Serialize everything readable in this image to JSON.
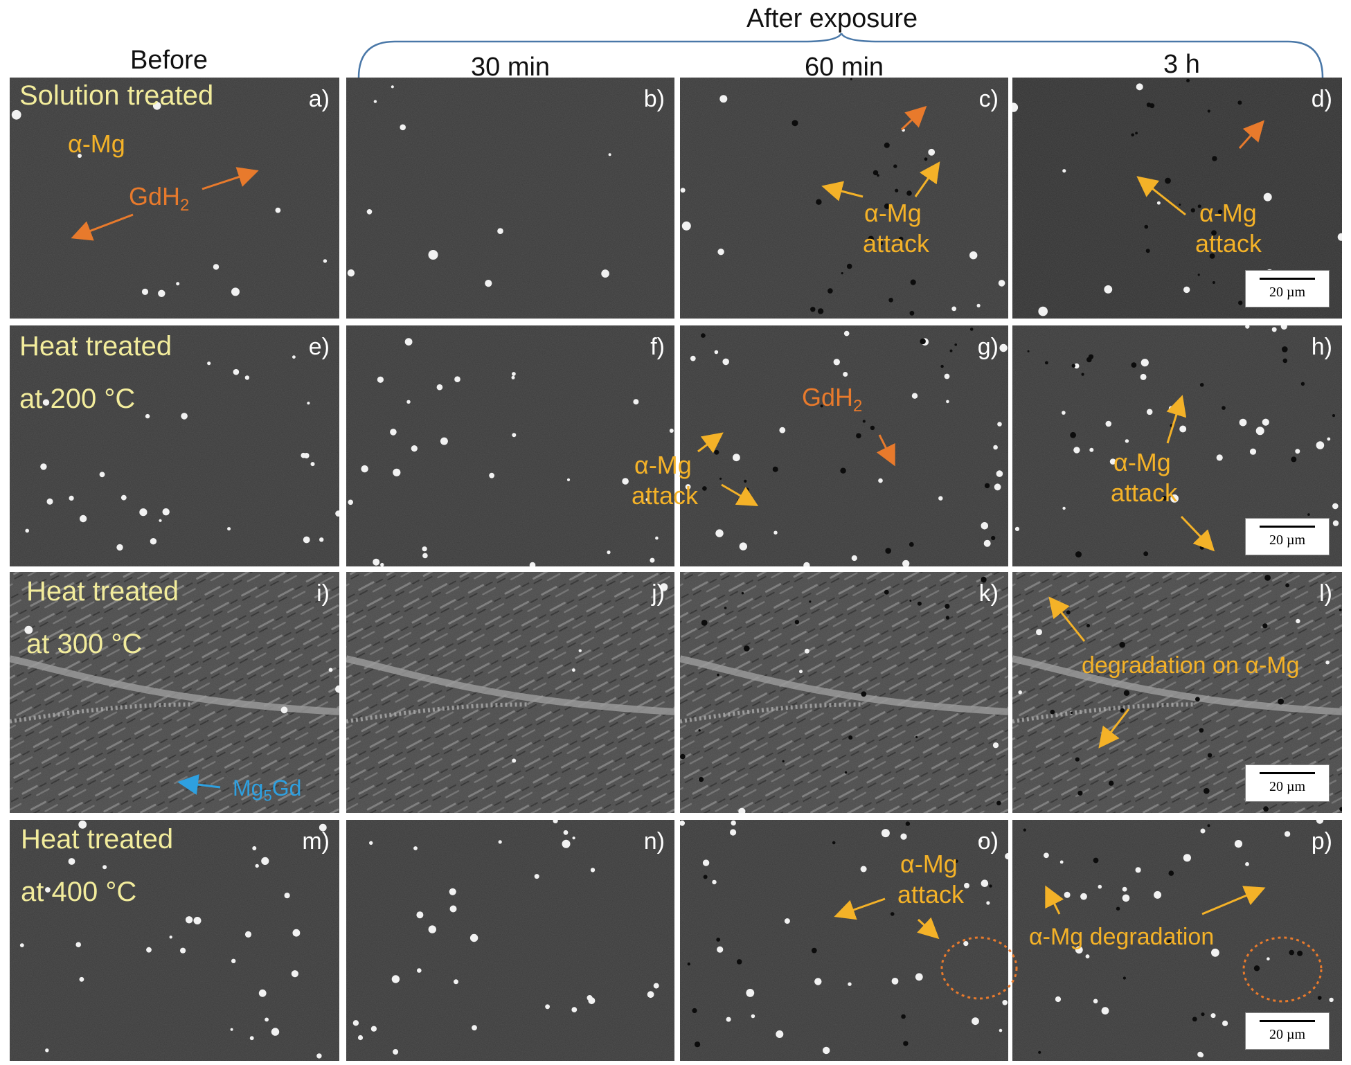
{
  "header": {
    "after_exposure": "After exposure",
    "before": "Before",
    "col_30": "30 min",
    "col_60": "60 min",
    "col_3h": "3 h"
  },
  "rows": {
    "r1": "Solution treated",
    "r2_a": "Heat treated",
    "r2_b": "at 200 °C",
    "r3_a": "Heat treated",
    "r3_b": "at 300 °C",
    "r4_a": "Heat treated",
    "r4_b": "at 400 °C"
  },
  "panel_labels": {
    "a": "a)",
    "b": "b)",
    "c": "c)",
    "d": "d)",
    "e": "e)",
    "f": "f)",
    "g": "g)",
    "h": "h)",
    "i": "i)",
    "j": "j)",
    "k": "k)",
    "l": "l)",
    "m": "m)",
    "n": "n)",
    "o": "o)",
    "p": "p)"
  },
  "annotations": {
    "alpha_mg": "α-Mg",
    "gdh": "GdH",
    "sub2": "2",
    "attack": "attack",
    "alpha_mg_attack": "α-Mg attack",
    "degradation_on": "degradation on α-Mg",
    "alpha_mg_degradation": "α-Mg degradation",
    "mg": "Mg",
    "sub5": "5",
    "gd": "Gd"
  },
  "scale_bar": "20 µm",
  "colors": {
    "row_label": "#f2ec9c",
    "annotation_yellow": "#f4b228",
    "annotation_orange": "#e87a2c",
    "annotation_blue": "#2ea0e0",
    "panel_background": "#3a3a3a"
  }
}
